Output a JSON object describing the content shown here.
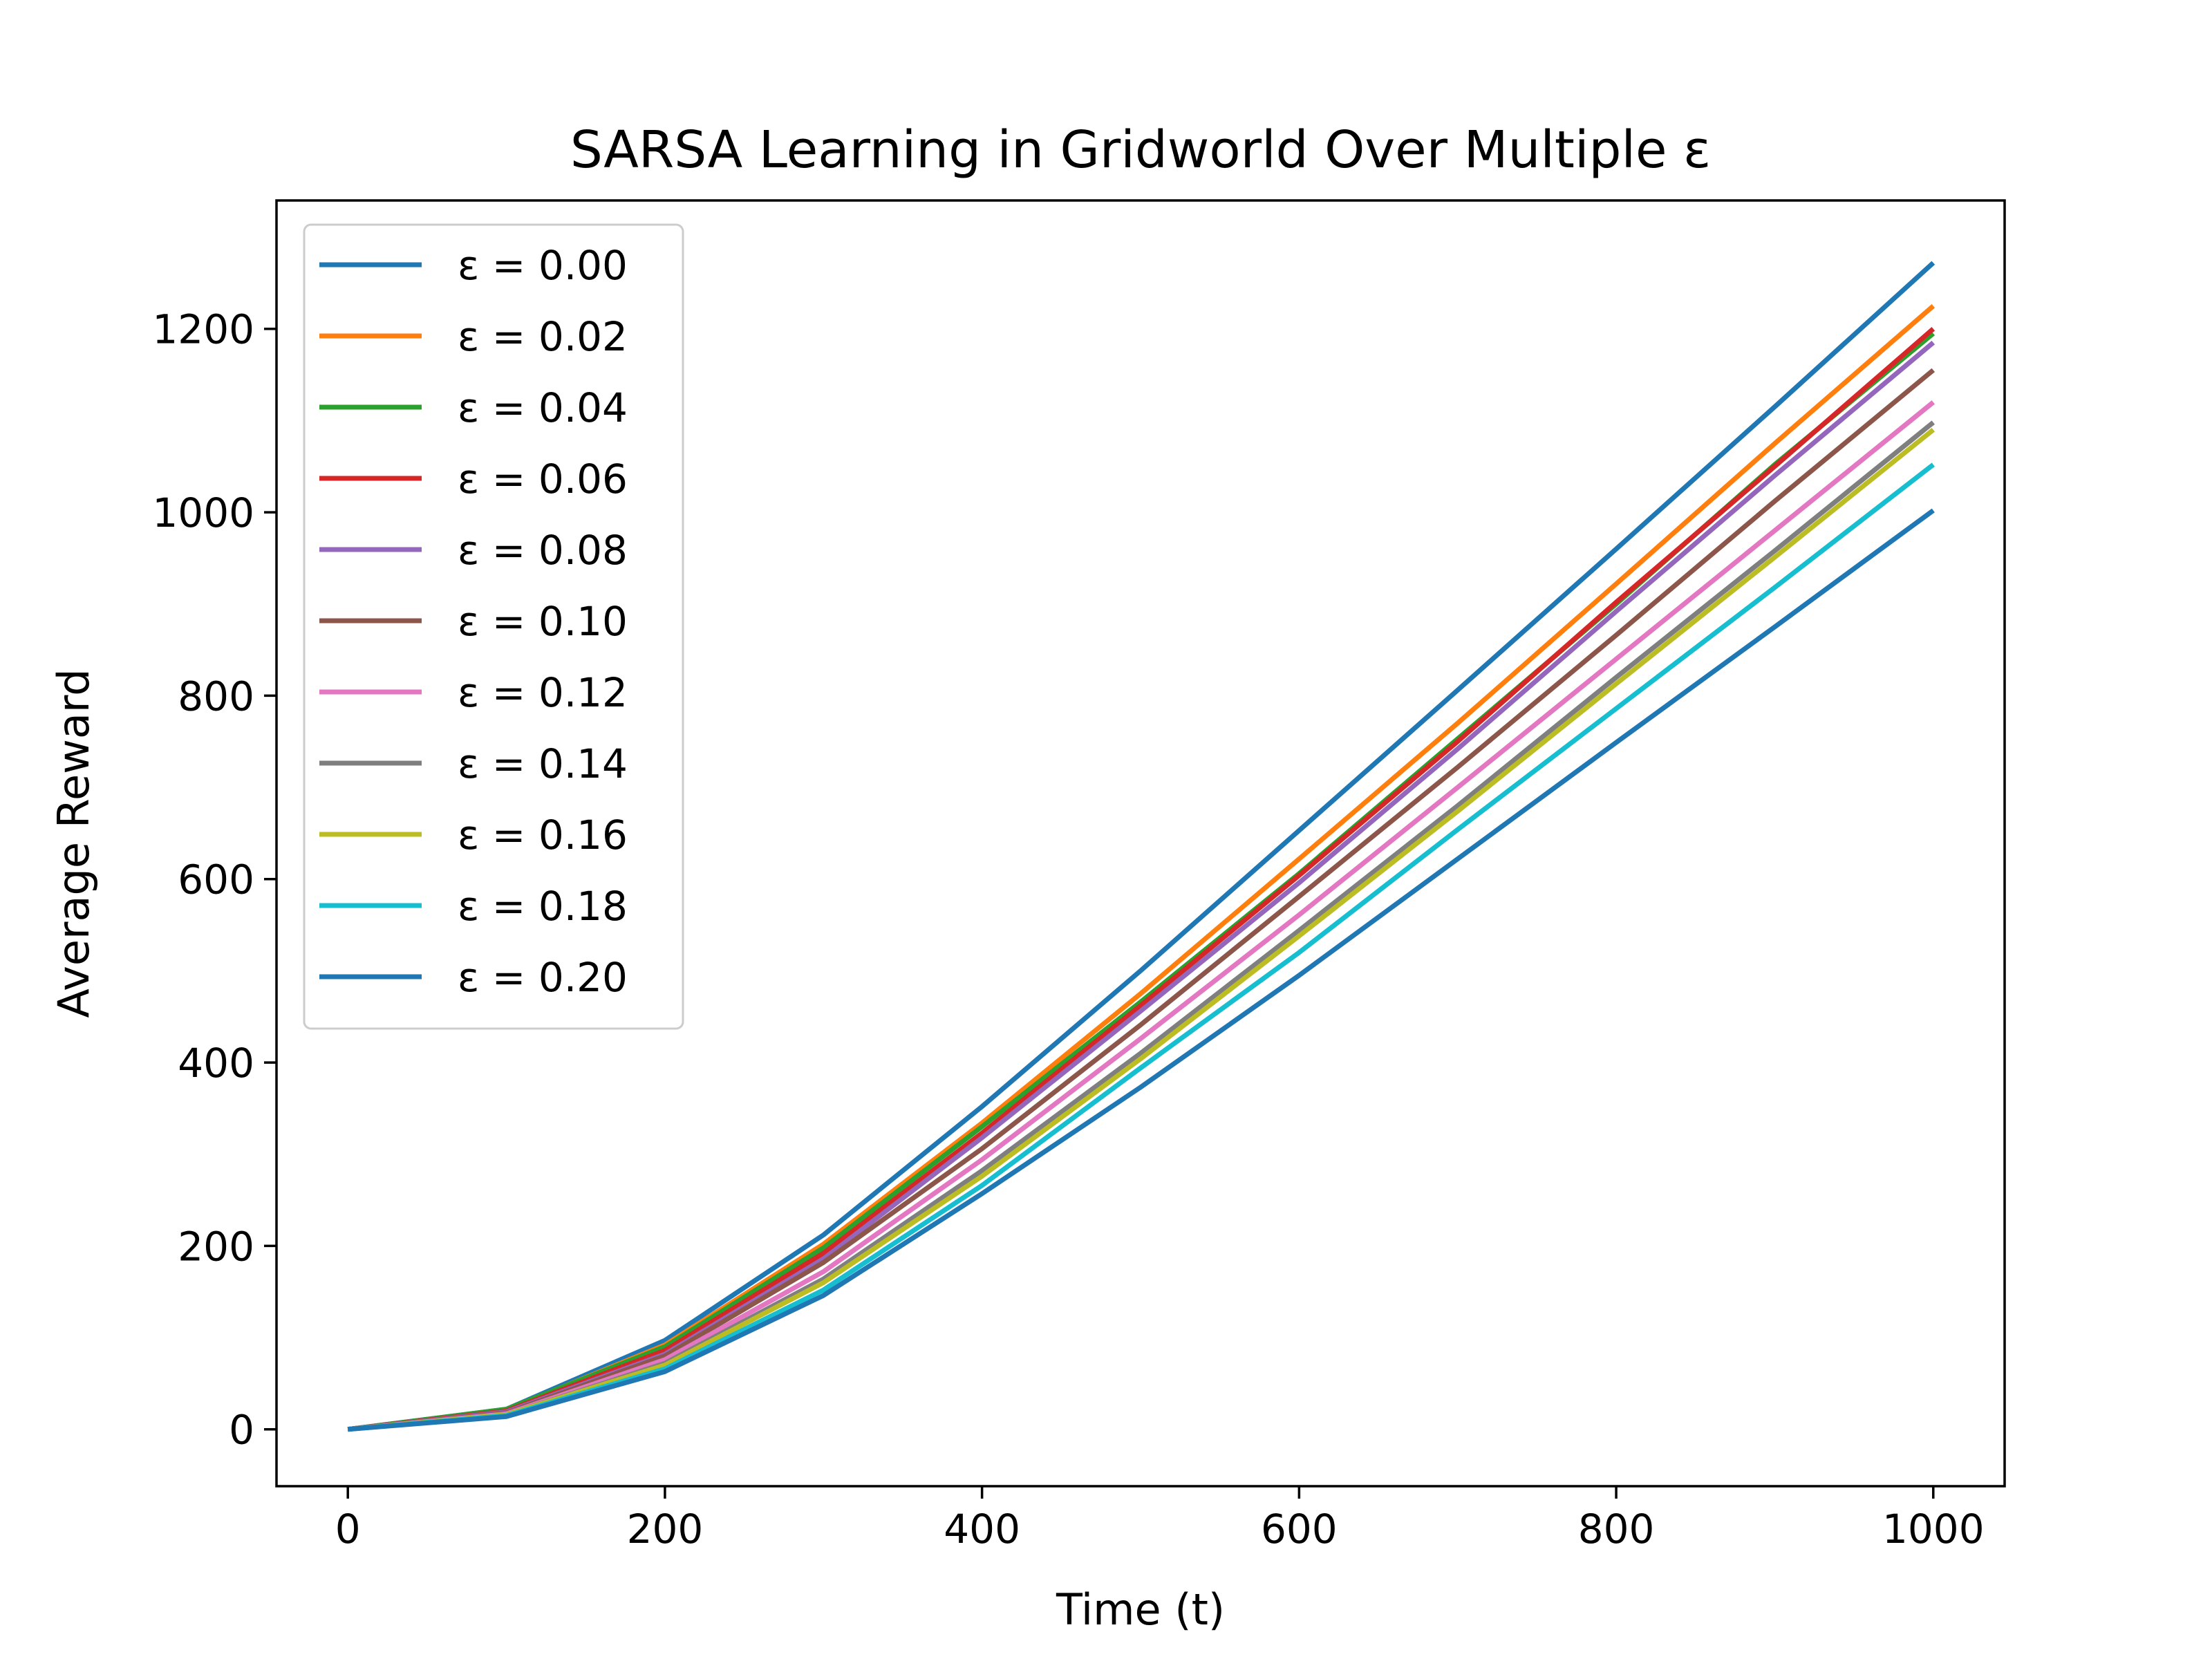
{
  "chart_data": {
    "type": "line",
    "title": "SARSA Learning in Gridworld Over Multiple ε",
    "xlabel": "Time (t)",
    "ylabel": "Average Reward",
    "xlim": [
      -45,
      1045
    ],
    "ylim": [
      -62,
      1340
    ],
    "xticks": [
      0,
      200,
      400,
      600,
      800,
      1000
    ],
    "yticks": [
      0,
      200,
      400,
      600,
      800,
      1000,
      1200
    ],
    "xtick_labels": [
      "0",
      "200",
      "400",
      "600",
      "800",
      "1000"
    ],
    "ytick_labels": [
      "0",
      "200",
      "400",
      "600",
      "800",
      "1000",
      "1200"
    ],
    "grid": false,
    "legend_position": "upper-left",
    "x": [
      0,
      100,
      200,
      300,
      400,
      500,
      600,
      700,
      800,
      900,
      1000
    ],
    "series": [
      {
        "name": "ε = 0.00",
        "color": "#1f77b4",
        "values": [
          0,
          22,
          97,
          212,
          352,
          500,
          653,
          806,
          960,
          1115,
          1272
        ]
      },
      {
        "name": "ε = 0.02",
        "color": "#ff7f0e",
        "values": [
          0,
          21,
          92,
          202,
          334,
          475,
          622,
          770,
          922,
          1075,
          1225
        ]
      },
      {
        "name": "ε = 0.04",
        "color": "#2ca02c",
        "values": [
          0,
          22,
          90,
          198,
          330,
          466,
          606,
          753,
          900,
          1052,
          1195
        ]
      },
      {
        "name": "ε = 0.06",
        "color": "#d62728",
        "values": [
          0,
          20,
          86,
          192,
          323,
          462,
          604,
          750,
          902,
          1050,
          1200
        ]
      },
      {
        "name": "ε = 0.08",
        "color": "#9467bd",
        "values": [
          0,
          19,
          82,
          186,
          318,
          456,
          596,
          742,
          892,
          1040,
          1185
        ]
      },
      {
        "name": "ε = 0.10",
        "color": "#8c564b",
        "values": [
          0,
          18,
          80,
          182,
          306,
          441,
          581,
          722,
          866,
          1012,
          1155
        ]
      },
      {
        "name": "ε = 0.12",
        "color": "#e377c2",
        "values": [
          0,
          17,
          76,
          172,
          294,
          426,
          561,
          700,
          840,
          980,
          1120
        ]
      },
      {
        "name": "ε = 0.14",
        "color": "#7f7f7f",
        "values": [
          0,
          16,
          72,
          164,
          282,
          410,
          544,
          680,
          820,
          958,
          1098
        ]
      },
      {
        "name": "ε = 0.16",
        "color": "#bcbd22",
        "values": [
          0,
          16,
          70,
          160,
          276,
          404,
          538,
          674,
          813,
          951,
          1090
        ]
      },
      {
        "name": "ε = 0.18",
        "color": "#17becf",
        "values": [
          0,
          15,
          66,
          152,
          266,
          394,
          520,
          654,
          786,
          918,
          1052
        ]
      },
      {
        "name": "ε = 0.20",
        "color": "#1f77b4",
        "values": [
          0,
          14,
          63,
          146,
          257,
          373,
          495,
          622,
          749,
          875,
          1002
        ]
      }
    ]
  }
}
